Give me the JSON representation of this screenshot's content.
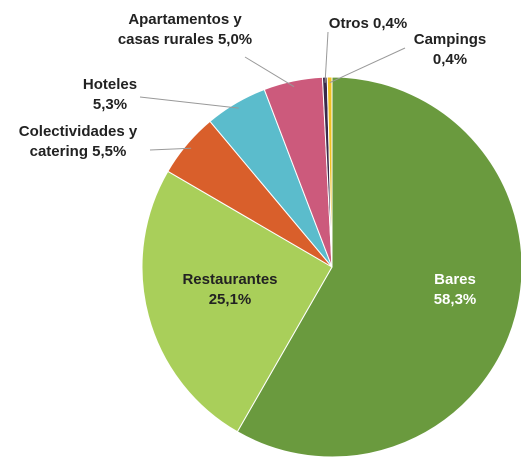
{
  "chart_data": {
    "type": "pie",
    "categories": [
      "Bares",
      "Restaurantes",
      "Colectividades y catering",
      "Hoteles",
      "Apartamentos y casas rurales",
      "Otros",
      "Campings"
    ],
    "values": [
      58.3,
      25.1,
      5.5,
      5.3,
      5.0,
      0.4,
      0.4
    ],
    "value_labels": [
      "58,3%",
      "25,1%",
      "5,5%",
      "5,3%",
      "5,0%",
      "0,4%",
      "0,4%"
    ],
    "colors": [
      "#6a9a3e",
      "#a9cf5a",
      "#d95f2b",
      "#5bbccc",
      "#cc5a7c",
      "#3b2a4a",
      "#f0c020"
    ]
  }
}
